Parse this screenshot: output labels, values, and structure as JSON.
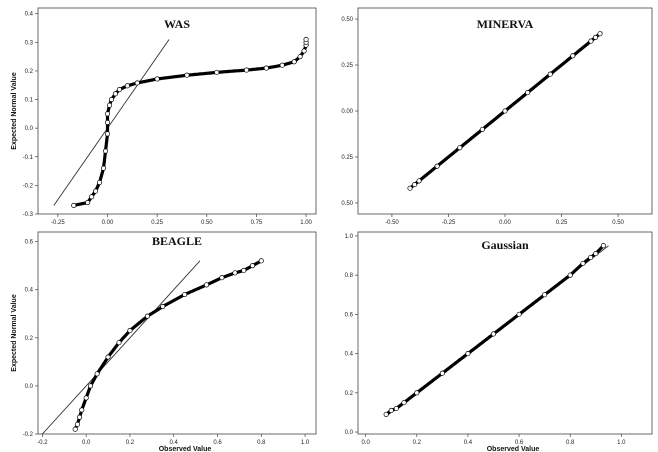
{
  "chart_data": [
    {
      "type": "scatter",
      "title": "WAS",
      "xlabel": "",
      "ylabel": "Expected Normal Value",
      "xlim": [
        -0.35,
        1.05
      ],
      "ylim": [
        -0.3,
        0.42
      ],
      "xticks": [
        -0.25,
        0.0,
        0.25,
        0.5,
        0.75,
        1.0
      ],
      "xtick_labels": [
        "-0.25",
        "0.00",
        "0.25",
        "0.50",
        "0.75",
        "1.00"
      ],
      "yticks": [
        -0.3,
        -0.2,
        -0.1,
        0.0,
        0.1,
        0.2,
        0.3,
        0.4
      ],
      "ytick_labels": [
        "-0.3",
        "-0.2",
        "-0.1",
        "0.0",
        "0.1",
        "0.2",
        "0.3",
        "0.4"
      ],
      "reference_line": [
        [
          -0.27,
          -0.27
        ],
        [
          0.31,
          0.31
        ]
      ],
      "series": [
        {
          "x": [
            -0.17,
            -0.1,
            -0.08,
            -0.06,
            -0.04,
            -0.02,
            -0.01,
            0.0,
            0.0,
            0.0,
            0.01,
            0.02,
            0.04,
            0.06,
            0.1,
            0.15,
            0.25,
            0.4,
            0.55,
            0.7,
            0.8,
            0.88,
            0.94,
            0.97,
            0.99,
            1.0,
            1.0,
            1.0
          ],
          "y": [
            -0.27,
            -0.26,
            -0.24,
            -0.22,
            -0.19,
            -0.14,
            -0.08,
            -0.02,
            0.02,
            0.05,
            0.08,
            0.1,
            0.12,
            0.135,
            0.148,
            0.158,
            0.172,
            0.185,
            0.195,
            0.203,
            0.21,
            0.22,
            0.232,
            0.25,
            0.27,
            0.29,
            0.3,
            0.31
          ]
        }
      ]
    },
    {
      "type": "scatter",
      "title": "MINERVA",
      "xlabel": "",
      "ylabel": "",
      "xlim": [
        -0.65,
        0.65
      ],
      "ylim": [
        -0.56,
        0.56
      ],
      "xticks": [
        -0.5,
        -0.25,
        0.0,
        0.25,
        0.5
      ],
      "xtick_labels": [
        "-0.50",
        "-0.25",
        "0.00",
        "0.25",
        "0.50"
      ],
      "yticks": [
        0.5,
        0.25,
        0.0,
        -0.25,
        -0.5
      ],
      "ytick_labels": [
        "0.50",
        "0.25",
        "0.00",
        "0.25",
        "0.50"
      ],
      "reference_line": [
        [
          -0.42,
          -0.42
        ],
        [
          0.43,
          0.43
        ]
      ],
      "series": [
        {
          "x": [
            -0.42,
            -0.4,
            -0.38,
            -0.3,
            -0.2,
            -0.1,
            0.0,
            0.1,
            0.2,
            0.3,
            0.38,
            0.4,
            0.42
          ],
          "y": [
            -0.42,
            -0.4,
            -0.38,
            -0.3,
            -0.2,
            -0.1,
            0.0,
            0.1,
            0.2,
            0.3,
            0.38,
            0.4,
            0.42
          ]
        }
      ]
    },
    {
      "type": "scatter",
      "title": "BEAGLE",
      "xlabel": "Observed Value",
      "ylabel": "Expected Normal Value",
      "xlim": [
        -0.22,
        1.05
      ],
      "ylim": [
        -0.2,
        0.64
      ],
      "xticks": [
        -0.2,
        0.0,
        0.2,
        0.4,
        0.6,
        0.8,
        1.0
      ],
      "xtick_labels": [
        "-0.2",
        "0.0",
        "0.2",
        "0.4",
        "0.6",
        "0.8",
        "1.0"
      ],
      "yticks": [
        -0.2,
        0.0,
        0.2,
        0.4,
        0.6
      ],
      "ytick_labels": [
        "-0.2",
        "0.0",
        "0.2",
        "0.4",
        "0.6"
      ],
      "reference_line": [
        [
          -0.2,
          -0.2
        ],
        [
          0.52,
          0.52
        ]
      ],
      "series": [
        {
          "x": [
            -0.05,
            -0.04,
            -0.03,
            -0.02,
            0.0,
            0.02,
            0.05,
            0.1,
            0.15,
            0.2,
            0.28,
            0.35,
            0.45,
            0.55,
            0.62,
            0.68,
            0.72,
            0.76,
            0.8
          ],
          "y": [
            -0.18,
            -0.16,
            -0.13,
            -0.1,
            -0.05,
            0.0,
            0.05,
            0.12,
            0.18,
            0.23,
            0.29,
            0.33,
            0.38,
            0.42,
            0.45,
            0.47,
            0.48,
            0.5,
            0.52
          ]
        }
      ]
    },
    {
      "type": "scatter",
      "title": "Gaussian",
      "xlabel": "Observed Value",
      "ylabel": "",
      "xlim": [
        -0.03,
        1.12
      ],
      "ylim": [
        -0.01,
        1.02
      ],
      "xticks": [
        0.0,
        0.2,
        0.4,
        0.6,
        0.8,
        1.0
      ],
      "xtick_labels": [
        "0.0",
        "0.2",
        "0.4",
        "0.6",
        "0.8",
        "1.0"
      ],
      "yticks": [
        0.0,
        0.2,
        0.4,
        0.6,
        0.8,
        1.0
      ],
      "ytick_labels": [
        "0.0",
        "0.2",
        "0.4",
        "0.6",
        "0.8",
        "1.0"
      ],
      "reference_line": [
        [
          0.08,
          0.08
        ],
        [
          0.95,
          0.95
        ]
      ],
      "series": [
        {
          "x": [
            0.08,
            0.1,
            0.12,
            0.15,
            0.2,
            0.3,
            0.4,
            0.5,
            0.6,
            0.7,
            0.8,
            0.85,
            0.88,
            0.9,
            0.93
          ],
          "y": [
            0.09,
            0.11,
            0.12,
            0.15,
            0.2,
            0.3,
            0.4,
            0.5,
            0.6,
            0.7,
            0.8,
            0.86,
            0.89,
            0.91,
            0.95
          ]
        }
      ]
    }
  ]
}
